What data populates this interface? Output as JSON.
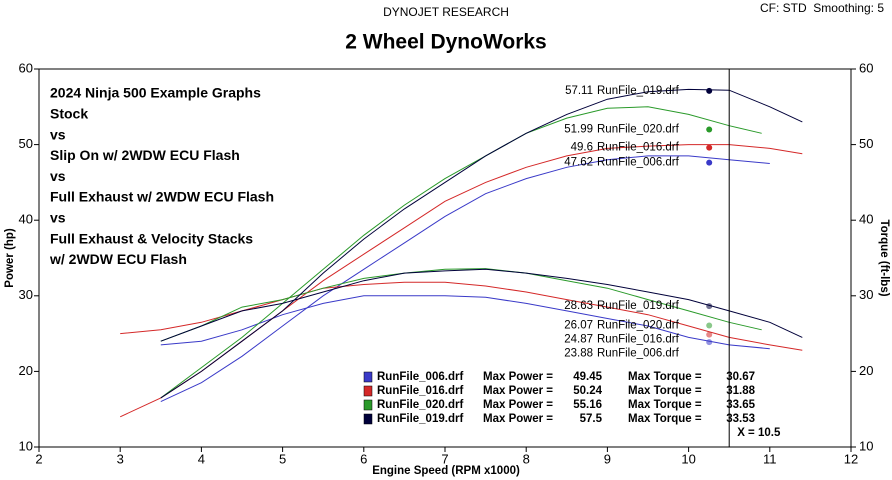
{
  "chart_data": {
    "type": "line",
    "header": "DYNOJET RESEARCH",
    "corner_note": "CF: STD  Smoothing: 5",
    "title": "2 Wheel DynoWorks",
    "xlabel": "Engine Speed (RPM x1000)",
    "ylabel": "Power (hp)",
    "y2label": "Torque (ft-lbs)",
    "xlim": [
      2,
      12
    ],
    "xticks": [
      2,
      3,
      4,
      5,
      6,
      7,
      8,
      9,
      10,
      11,
      12
    ],
    "ylim": [
      10,
      60
    ],
    "yticks": [
      10,
      20,
      30,
      40,
      50,
      60
    ],
    "y2lim": [
      10,
      60
    ],
    "y2ticks": [
      10,
      20,
      30,
      40,
      50,
      60
    ],
    "cursor": {
      "x": 10.5,
      "label": "X = 10.5"
    },
    "legend_labels": {
      "power": "Max Power =",
      "torque": "Max Torque ="
    },
    "annotations": [
      {
        "text": "2024 Ninja 500 Example Graphs",
        "color": "#000000"
      },
      {
        "text": "Stock",
        "color": "#1ca0dc"
      },
      {
        "text": "vs",
        "color": "#000000"
      },
      {
        "text": "Slip On w/ 2WDW ECU Flash",
        "color": "#e0202a"
      },
      {
        "text": "vs",
        "color": "#000000"
      },
      {
        "text": "Full Exhaust w/ 2WDW ECU Flash",
        "color": "#2a9a3a"
      },
      {
        "text": "vs",
        "color": "#000000"
      },
      {
        "text": "Full Exhaust & Velocity Stacks",
        "color": "#4a4ac0"
      },
      {
        "text": "w/ 2WDW ECU Flash",
        "color": "#4a4ac0"
      }
    ],
    "series": [
      {
        "name": "RunFile_006.drf",
        "color": "#3a3ac8",
        "max_power": 49.45,
        "max_torque": 30.67,
        "cursor_power": 47.62,
        "cursor_torque": 23.88,
        "x": [
          3.5,
          4,
          4.5,
          5,
          5.5,
          6,
          6.5,
          7,
          7.5,
          8,
          8.5,
          9,
          9.5,
          10,
          10.5,
          11
        ],
        "power": [
          16,
          18.5,
          22,
          26,
          30,
          33.5,
          37,
          40.5,
          43.5,
          45.5,
          47,
          48,
          48.5,
          48.5,
          48,
          47.5
        ],
        "torque": [
          23.5,
          24,
          25.5,
          27.5,
          29,
          30,
          30,
          30,
          29.8,
          29,
          28,
          27,
          26,
          24.5,
          23.5,
          23
        ]
      },
      {
        "name": "RunFile_016.drf",
        "color": "#d42828",
        "max_power": 50.24,
        "max_torque": 31.88,
        "cursor_power": 49.6,
        "cursor_torque": 24.87,
        "x": [
          3,
          3.5,
          4,
          4.5,
          5,
          5.5,
          6,
          6.5,
          7,
          7.5,
          8,
          8.5,
          9,
          9.5,
          10,
          10.5,
          11,
          11.4
        ],
        "power": [
          14,
          16.5,
          20,
          24,
          28,
          32,
          35.5,
          39,
          42.5,
          45,
          47,
          48.5,
          49.5,
          49.8,
          50,
          50,
          49.5,
          48.8
        ],
        "torque": [
          25,
          25.5,
          26.5,
          28,
          29.5,
          31,
          31.5,
          31.8,
          31.8,
          31.3,
          30.5,
          29.5,
          28.5,
          27.5,
          26,
          24.5,
          23.5,
          22.8
        ]
      },
      {
        "name": "RunFile_020.drf",
        "color": "#2a9a2a",
        "max_power": 55.16,
        "max_torque": 33.65,
        "cursor_power": 51.99,
        "cursor_torque": 26.07,
        "x": [
          3.5,
          4,
          4.5,
          5,
          5.5,
          6,
          6.5,
          7,
          7.5,
          8,
          8.5,
          9,
          9.5,
          10,
          10.5,
          10.9
        ],
        "power": [
          16.5,
          20.5,
          24.5,
          29,
          33.5,
          38,
          42,
          45.5,
          48.5,
          51.5,
          53.5,
          54.8,
          55,
          54,
          52.5,
          51.5
        ],
        "torque": [
          24,
          26,
          28.5,
          29.5,
          31,
          32.3,
          33,
          33.5,
          33.6,
          33,
          32,
          31,
          29.5,
          28,
          26.5,
          25.5
        ]
      },
      {
        "name": "RunFile_019.drf",
        "color": "#00003a",
        "max_power": 57.5,
        "max_torque": 33.53,
        "cursor_power": 57.11,
        "cursor_torque": 28.63,
        "x": [
          3.5,
          4,
          4.5,
          5,
          5.5,
          6,
          6.5,
          7,
          7.5,
          8,
          8.5,
          9,
          9.5,
          10,
          10.5,
          11,
          11.4
        ],
        "power": [
          16.5,
          20,
          24,
          28,
          33,
          37.5,
          41.5,
          45,
          48.5,
          51.5,
          54,
          56,
          57,
          57.3,
          57.2,
          55,
          53
        ],
        "torque": [
          24,
          26,
          28,
          29,
          30.5,
          32,
          33,
          33.3,
          33.5,
          33,
          32.3,
          31.5,
          30.5,
          29.5,
          28,
          26.5,
          24.5
        ]
      }
    ]
  }
}
